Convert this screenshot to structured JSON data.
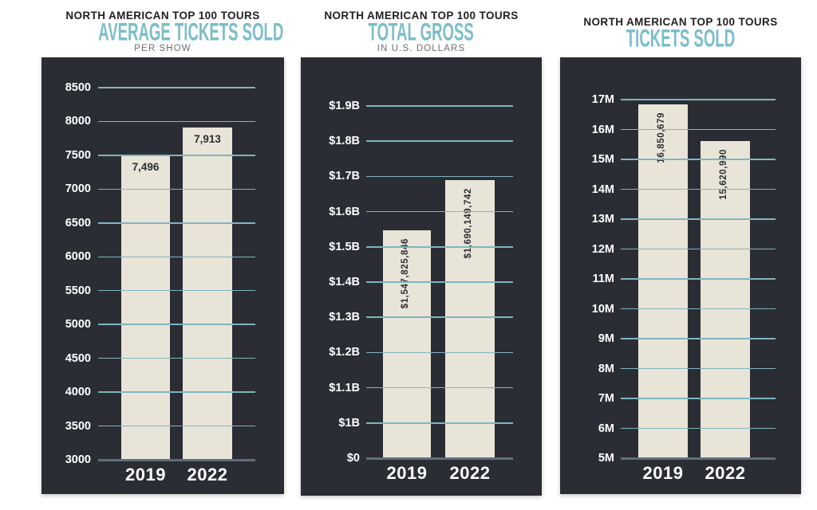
{
  "colors": {
    "panel_background": "#2b2d34",
    "bar_fill": "#e9e4d8",
    "gridline": "#7fb5bf",
    "baseline": "#5c7079",
    "title_text": "#221e1f",
    "subtitle_teal": "#7bbdca",
    "subnote_gray": "#6d6e71",
    "tick_label": "#ffffff",
    "value_label": "#2b2d34"
  },
  "chart_data": [
    {
      "type": "bar",
      "title": "NORTH AMERICAN TOP 100 TOURS",
      "subtitle": "AVERAGE TICKETS SOLD",
      "subnote": "PER SHOW",
      "categories": [
        "2019",
        "2022"
      ],
      "values": [
        7496,
        7913
      ],
      "bar_labels": [
        "7,496",
        "7,913"
      ],
      "bar_label_orientation": "horizontal",
      "ylim": [
        3000,
        8500
      ],
      "grid": true,
      "legend": false,
      "yticks": [
        {
          "label": "8500",
          "value": 8500
        },
        {
          "label": "8000",
          "value": 8000
        },
        {
          "label": "7500",
          "value": 7500
        },
        {
          "label": "7000",
          "value": 7000
        },
        {
          "label": "6500",
          "value": 6500
        },
        {
          "label": "6000",
          "value": 6000
        },
        {
          "label": "5500",
          "value": 5500
        },
        {
          "label": "5000",
          "value": 5000
        },
        {
          "label": "4500",
          "value": 4500
        },
        {
          "label": "4000",
          "value": 4000
        },
        {
          "label": "3500",
          "value": 3500
        },
        {
          "label": "3000",
          "value": 3000
        }
      ]
    },
    {
      "type": "bar",
      "title": "NORTH AMERICAN TOP 100 TOURS",
      "subtitle": "TOTAL GROSS",
      "subnote": "IN U.S. DOLLARS",
      "categories": [
        "2019",
        "2022"
      ],
      "values": [
        1547825846,
        1690149742
      ],
      "bar_labels": [
        "$1,547,825,846",
        "$1,690,149,742"
      ],
      "bar_label_orientation": "vertical",
      "ylim": [
        0,
        1900000000
      ],
      "axis_note": "broken axis: single step from $0 to $1B",
      "grid": true,
      "legend": false,
      "yticks": [
        {
          "label": "$1.9B",
          "value": 1900000000
        },
        {
          "label": "$1.8B",
          "value": 1800000000
        },
        {
          "label": "$1.7B",
          "value": 1700000000
        },
        {
          "label": "$1.6B",
          "value": 1600000000
        },
        {
          "label": "$1.5B",
          "value": 1500000000
        },
        {
          "label": "$1.4B",
          "value": 1400000000
        },
        {
          "label": "$1.3B",
          "value": 1300000000
        },
        {
          "label": "$1.2B",
          "value": 1200000000
        },
        {
          "label": "$1.1B",
          "value": 1100000000
        },
        {
          "label": "$1B",
          "value": 1000000000
        },
        {
          "label": "$0",
          "value": 0
        }
      ]
    },
    {
      "type": "bar",
      "title": "NORTH AMERICAN TOP 100 TOURS",
      "subtitle": "TICKETS SOLD",
      "categories": [
        "2019",
        "2022"
      ],
      "values": [
        16850679,
        15620990
      ],
      "bar_labels": [
        "16,850,679",
        "15,620,990"
      ],
      "bar_label_orientation": "vertical",
      "ylim": [
        5000000,
        17000000
      ],
      "grid": true,
      "legend": false,
      "yticks": [
        {
          "label": "17M",
          "value": 17000000
        },
        {
          "label": "16M",
          "value": 16000000
        },
        {
          "label": "15M",
          "value": 15000000
        },
        {
          "label": "14M",
          "value": 14000000
        },
        {
          "label": "13M",
          "value": 13000000
        },
        {
          "label": "12M",
          "value": 12000000
        },
        {
          "label": "11M",
          "value": 11000000
        },
        {
          "label": "10M",
          "value": 10000000
        },
        {
          "label": "9M",
          "value": 9000000
        },
        {
          "label": "8M",
          "value": 8000000
        },
        {
          "label": "7M",
          "value": 7000000
        },
        {
          "label": "6M",
          "value": 6000000
        },
        {
          "label": "5M",
          "value": 5000000
        }
      ]
    }
  ]
}
